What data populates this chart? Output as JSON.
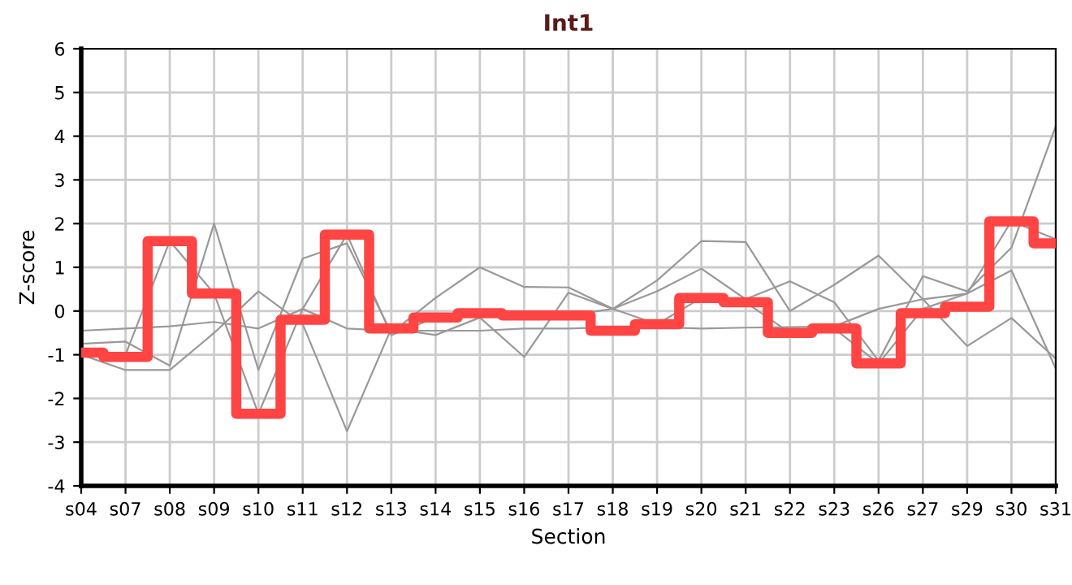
{
  "chart_data": {
    "type": "line",
    "title": "Int1",
    "xlabel": "Section",
    "ylabel": "Z-score",
    "categories": [
      "s04",
      "s07",
      "s08",
      "s09",
      "s10",
      "s11",
      "s12",
      "s13",
      "s14",
      "s15",
      "s16",
      "s17",
      "s18",
      "s19",
      "s20",
      "s21",
      "s22",
      "s23",
      "s26",
      "s27",
      "s29",
      "s30",
      "s31"
    ],
    "ylim": [
      -4,
      6
    ],
    "yticks": [
      -4,
      -3,
      -2,
      -1,
      0,
      1,
      2,
      3,
      4,
      5,
      6
    ],
    "grid": true,
    "series": [
      {
        "color": "#999999",
        "values": [
          -0.45,
          -0.4,
          -0.35,
          -0.25,
          -0.4,
          0.05,
          -0.4,
          -0.45,
          -0.45,
          -0.45,
          -0.4,
          -0.4,
          -0.37,
          -0.37,
          -0.4,
          -0.38,
          -0.37,
          -0.35,
          0.05,
          0.27,
          0.4,
          0.93,
          -1.32
        ]
      },
      {
        "color": "#999999",
        "values": [
          -0.75,
          -0.7,
          -1.25,
          2.0,
          -1.35,
          1.2,
          1.55,
          -0.5,
          0.3,
          1.0,
          0.55,
          0.54,
          0.05,
          0.7,
          1.6,
          1.58,
          0.0,
          0.6,
          1.27,
          0.27,
          -0.8,
          -0.16,
          -1.09
        ]
      },
      {
        "color": "#999999",
        "values": [
          -1.0,
          -1.35,
          -1.35,
          -0.5,
          0.45,
          -0.3,
          -2.75,
          -0.4,
          -0.55,
          -0.15,
          -1.05,
          0.42,
          0.05,
          0.45,
          0.97,
          0.27,
          0.68,
          0.2,
          -1.14,
          0.8,
          0.45,
          1.45,
          4.23
        ]
      },
      {
        "color": "#999999",
        "values": [
          -1.0,
          -1.0,
          1.6,
          0.4,
          -2.35,
          0.05,
          1.75,
          -0.55,
          -0.15,
          -0.05,
          -0.1,
          -0.1,
          0.05,
          -0.3,
          0.3,
          0.2,
          -0.5,
          -0.4,
          -1.2,
          0.05,
          0.4,
          2.06,
          1.64
        ]
      },
      {
        "type": "step",
        "color": "#ff4444",
        "values": [
          -0.95,
          -1.05,
          1.6,
          0.4,
          -2.35,
          -0.2,
          1.75,
          -0.4,
          -0.15,
          -0.05,
          -0.1,
          -0.1,
          -0.45,
          -0.3,
          0.3,
          0.2,
          -0.5,
          -0.4,
          -1.2,
          -0.05,
          0.1,
          2.05,
          1.55
        ]
      }
    ]
  }
}
